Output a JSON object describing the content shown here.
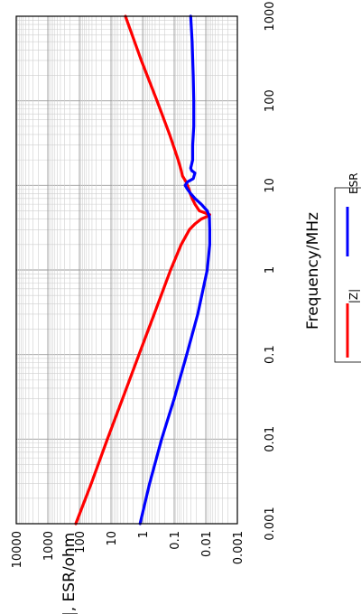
{
  "chart_data": {
    "type": "line",
    "title": "",
    "xlabel": "Frequency/MHz",
    "ylabel": "|Z|, ESR/ohm",
    "x_scale": "log",
    "y_scale": "log",
    "xlim": [
      0.001,
      1000
    ],
    "ylim": [
      0.001,
      10000
    ],
    "grid": true,
    "legend_position": "bottom",
    "x_tick_labels": [
      "0.001",
      "0.01",
      "0.1",
      "1",
      "10",
      "100",
      "1000"
    ],
    "y_tick_labels": [
      "10000",
      "1000",
      "100",
      "10",
      "1",
      "0.1",
      "0.01",
      "0.001"
    ],
    "series": [
      {
        "name": "|Z|",
        "color": "#ff0000",
        "x": [
          0.001,
          0.003,
          0.01,
          0.03,
          0.1,
          0.3,
          1,
          2,
          3,
          3.5,
          4,
          4.3,
          4.5,
          5,
          6,
          7,
          8,
          9,
          10,
          11,
          13,
          15,
          20,
          40,
          100,
          300,
          1000
        ],
        "y": [
          130,
          42,
          13,
          4.3,
          1.3,
          0.43,
          0.13,
          0.06,
          0.033,
          0.022,
          0.014,
          0.009,
          0.0075,
          0.016,
          0.022,
          0.027,
          0.031,
          0.034,
          0.038,
          0.042,
          0.055,
          0.06,
          0.075,
          0.14,
          0.35,
          1.1,
          3.5
        ]
      },
      {
        "name": "ESR",
        "color": "#0000ff",
        "x": [
          0.001,
          0.003,
          0.01,
          0.03,
          0.1,
          0.3,
          1,
          2,
          3,
          4.3,
          5,
          6,
          7,
          8,
          9,
          10,
          11,
          12,
          14,
          15,
          16,
          20,
          30,
          50,
          100,
          200,
          500,
          1000
        ],
        "y": [
          1.2,
          0.6,
          0.25,
          0.1,
          0.04,
          0.018,
          0.009,
          0.0075,
          0.0075,
          0.0077,
          0.009,
          0.014,
          0.022,
          0.03,
          0.038,
          0.045,
          0.038,
          0.025,
          0.022,
          0.028,
          0.03,
          0.026,
          0.026,
          0.024,
          0.024,
          0.025,
          0.027,
          0.03
        ]
      }
    ]
  }
}
